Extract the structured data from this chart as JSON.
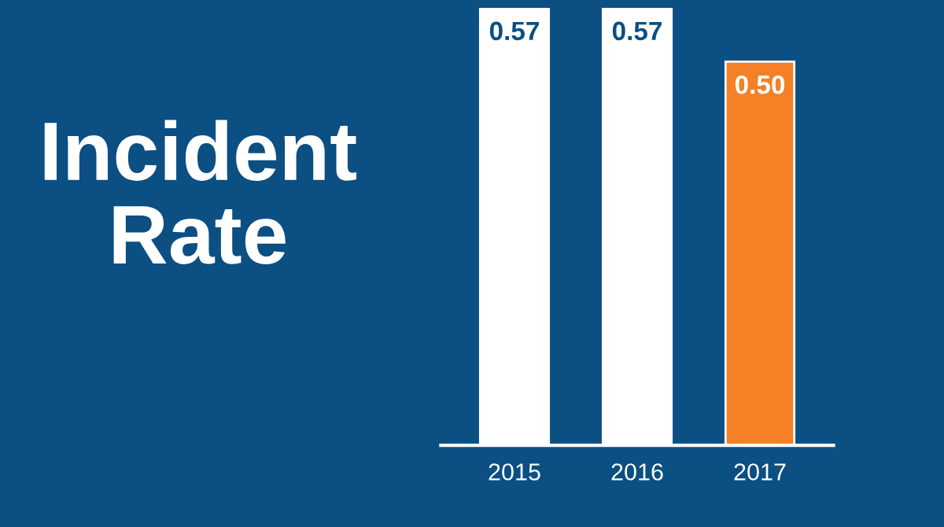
{
  "chart_data": {
    "type": "bar",
    "title": "Incident Rate",
    "categories": [
      "2015",
      "2016",
      "2017"
    ],
    "values": [
      0.57,
      0.57,
      0.5
    ],
    "colors": [
      "#ffffff",
      "#ffffff",
      "#f58025"
    ],
    "value_labels": [
      "0.57",
      "0.57",
      "0.50"
    ],
    "tick_labels": "x",
    "grid": false,
    "legend": false
  }
}
